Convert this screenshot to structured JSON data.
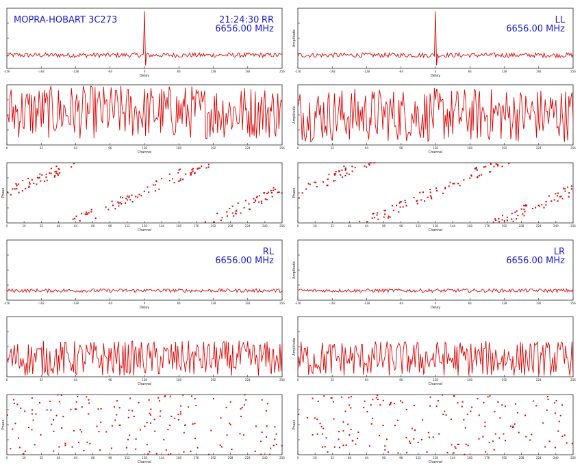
{
  "header": {
    "baseline": "MOPRA-HOBART 3C273",
    "time": "21:24:30"
  },
  "colors": {
    "trace": "#dd0000",
    "annotation": "#1a1ad6",
    "axes": "#222222"
  },
  "chart_data": [
    {
      "type": "line",
      "panel": "RR-delay",
      "pol": "RR",
      "freq": "6656.00 MHz",
      "xlabel": "Delay",
      "ylabel": "",
      "xlim": [
        -256,
        256
      ],
      "ylim": [
        0,
        1
      ],
      "peak_x": 0,
      "peak_y": 0.95,
      "noise_level": 0.22,
      "noise_spread": 0.04,
      "xticks": [
        "-256",
        "-192",
        "-128",
        "-64",
        "0",
        "64",
        "128",
        "192",
        "256"
      ]
    },
    {
      "type": "line",
      "panel": "LL-delay",
      "pol": "LL",
      "freq": "6656.00 MHz",
      "xlabel": "Delay",
      "ylabel": "Amplitude",
      "xlim": [
        -256,
        256
      ],
      "ylim": [
        0,
        1
      ],
      "peak_x": 0,
      "peak_y": 0.95,
      "noise_level": 0.22,
      "noise_spread": 0.04,
      "xticks": [
        "-256",
        "-192",
        "-128",
        "-64",
        "0",
        "64",
        "128",
        "192",
        "256"
      ]
    },
    {
      "type": "line",
      "panel": "RR-amp",
      "xlabel": "Channel",
      "ylabel": "",
      "xlim": [
        0,
        256
      ],
      "ylim": [
        0,
        1
      ],
      "noise_level": 0.55,
      "noise_spread": 0.45,
      "xticks": [
        "0",
        "32",
        "64",
        "96",
        "128",
        "160",
        "192",
        "224",
        "256"
      ]
    },
    {
      "type": "line",
      "panel": "LL-amp",
      "xlabel": "Channel",
      "ylabel": "Amplitude",
      "xlim": [
        0,
        256
      ],
      "ylim": [
        0,
        1
      ],
      "noise_level": 0.5,
      "noise_spread": 0.45,
      "xticks": [
        "0",
        "32",
        "64",
        "96",
        "128",
        "160",
        "192",
        "224",
        "256"
      ]
    },
    {
      "type": "scatter",
      "panel": "RR-phase",
      "xlabel": "Channel",
      "ylabel": "Phase",
      "xlim": [
        0,
        256
      ],
      "ylim": [
        -180,
        180
      ],
      "phase_slope": 2.9,
      "xticks": [
        "0",
        "16",
        "32",
        "48",
        "64",
        "80",
        "96",
        "112",
        "128",
        "144",
        "160",
        "176",
        "192",
        "208",
        "224",
        "240",
        "256"
      ]
    },
    {
      "type": "scatter",
      "panel": "LL-phase",
      "xlabel": "Channel",
      "ylabel": "Phase",
      "xlim": [
        0,
        256
      ],
      "ylim": [
        -180,
        180
      ],
      "phase_slope": 2.9,
      "xticks": [
        "0",
        "16",
        "32",
        "48",
        "64",
        "80",
        "96",
        "112",
        "128",
        "144",
        "160",
        "176",
        "192",
        "208",
        "224",
        "240",
        "256"
      ]
    },
    {
      "type": "line",
      "panel": "RL-delay",
      "pol": "RL",
      "freq": "6656.00 MHz",
      "xlabel": "Delay",
      "ylabel": "",
      "xlim": [
        -256,
        256
      ],
      "ylim": [
        0,
        1
      ],
      "peak_x": 0,
      "peak_y": 0.18,
      "noise_level": 0.16,
      "noise_spread": 0.03,
      "xticks": [
        "-256",
        "-192",
        "-128",
        "-64",
        "0",
        "64",
        "128",
        "192",
        "256"
      ]
    },
    {
      "type": "line",
      "panel": "LR-delay",
      "pol": "LR",
      "freq": "6656.00 MHz",
      "xlabel": "Delay",
      "ylabel": "Amplitude",
      "xlim": [
        -256,
        256
      ],
      "ylim": [
        0,
        1
      ],
      "peak_x": -30,
      "peak_y": 0.16,
      "noise_level": 0.16,
      "noise_spread": 0.03,
      "xticks": [
        "-256",
        "-192",
        "-128",
        "-64",
        "0",
        "64",
        "128",
        "192",
        "256"
      ]
    },
    {
      "type": "line",
      "panel": "RL-amp",
      "xlabel": "Channel",
      "ylabel": "",
      "xlim": [
        0,
        256
      ],
      "ylim": [
        0,
        1
      ],
      "noise_level": 0.3,
      "noise_spread": 0.3,
      "xticks": [
        "0",
        "32",
        "64",
        "96",
        "128",
        "160",
        "192",
        "224",
        "256"
      ]
    },
    {
      "type": "line",
      "panel": "LR-amp",
      "xlabel": "Channel",
      "ylabel": "Amplitude",
      "xlim": [
        0,
        256
      ],
      "ylim": [
        0,
        1
      ],
      "noise_level": 0.3,
      "noise_spread": 0.3,
      "xticks": [
        "0",
        "32",
        "64",
        "96",
        "128",
        "160",
        "192",
        "224",
        "256"
      ]
    },
    {
      "type": "scatter",
      "panel": "RL-phase",
      "xlabel": "Channel",
      "ylabel": "Phase",
      "xlim": [
        0,
        256
      ],
      "ylim": [
        -180,
        180
      ],
      "phase_slope": 0,
      "xticks": [
        "0",
        "16",
        "32",
        "48",
        "64",
        "80",
        "96",
        "112",
        "128",
        "144",
        "160",
        "176",
        "192",
        "208",
        "224",
        "240",
        "256"
      ]
    },
    {
      "type": "scatter",
      "panel": "LR-phase",
      "xlabel": "Channel",
      "ylabel": "Phase",
      "xlim": [
        0,
        256
      ],
      "ylim": [
        -180,
        180
      ],
      "phase_slope": 0,
      "xticks": [
        "0",
        "16",
        "32",
        "48",
        "64",
        "80",
        "96",
        "112",
        "128",
        "144",
        "160",
        "176",
        "192",
        "208",
        "224",
        "240",
        "256"
      ]
    }
  ]
}
